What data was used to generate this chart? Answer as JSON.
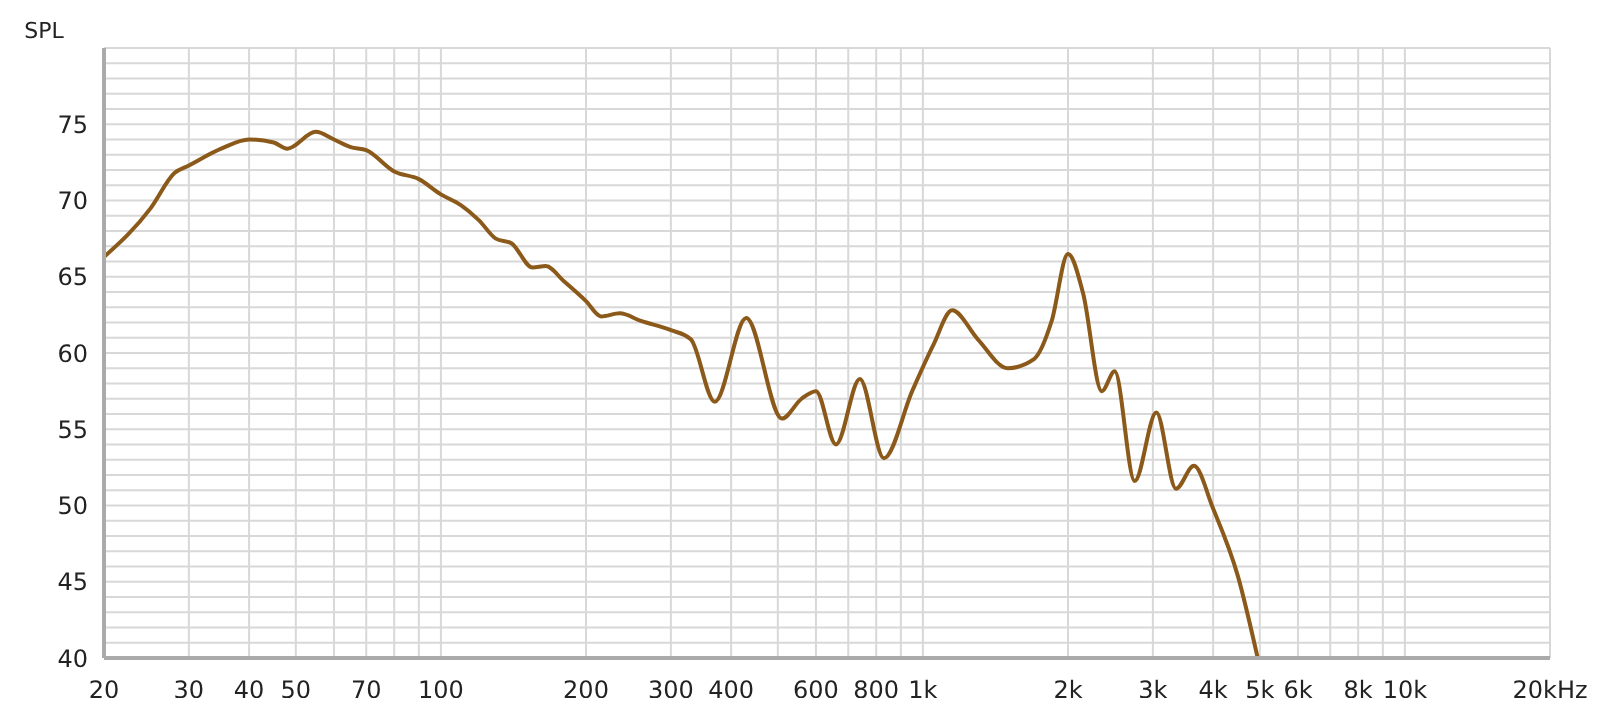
{
  "chart_data": {
    "type": "line",
    "ylabel": "SPL",
    "xlabel": "Hz",
    "xlim": [
      20,
      20000
    ],
    "ylim": [
      40,
      80
    ],
    "log": "x",
    "grid": true,
    "marker": "none",
    "line_style": "solid",
    "xticks": [
      20,
      30,
      40,
      50,
      {
        "value": 60,
        "label": null
      },
      70,
      {
        "value": 80,
        "label": null
      },
      {
        "value": 90,
        "label": null
      },
      100,
      200,
      300,
      400,
      {
        "value": 500,
        "label": null
      },
      600,
      {
        "value": 700,
        "label": null
      },
      800,
      {
        "value": 900,
        "label": null
      },
      {
        "value": 1000,
        "label": "1k"
      },
      {
        "value": 2000,
        "label": "2k"
      },
      {
        "value": 3000,
        "label": "3k"
      },
      {
        "value": 4000,
        "label": "4k"
      },
      {
        "value": 5000,
        "label": "5k"
      },
      {
        "value": 6000,
        "label": "6k"
      },
      {
        "value": 7000,
        "label": null
      },
      {
        "value": 8000,
        "label": "8k"
      },
      {
        "value": 9000,
        "label": null
      },
      {
        "value": 10000,
        "label": "10k"
      },
      {
        "value": 20000,
        "label": "20k"
      }
    ],
    "yticks": [
      40,
      {
        "value": 41,
        "label": null
      },
      {
        "value": 42,
        "label": null
      },
      {
        "value": 43,
        "label": null
      },
      {
        "value": 44,
        "label": null
      },
      45,
      {
        "value": 46,
        "label": null
      },
      {
        "value": 47,
        "label": null
      },
      {
        "value": 48,
        "label": null
      },
      {
        "value": 49,
        "label": null
      },
      50,
      {
        "value": 51,
        "label": null
      },
      {
        "value": 52,
        "label": null
      },
      {
        "value": 53,
        "label": null
      },
      {
        "value": 54,
        "label": null
      },
      55,
      {
        "value": 56,
        "label": null
      },
      {
        "value": 57,
        "label": null
      },
      {
        "value": 58,
        "label": null
      },
      {
        "value": 59,
        "label": null
      },
      60,
      {
        "value": 61,
        "label": null
      },
      {
        "value": 62,
        "label": null
      },
      {
        "value": 63,
        "label": null
      },
      {
        "value": 64,
        "label": null
      },
      65,
      {
        "value": 66,
        "label": null
      },
      {
        "value": 67,
        "label": null
      },
      {
        "value": 68,
        "label": null
      },
      {
        "value": 69,
        "label": null
      },
      70,
      {
        "value": 71,
        "label": null
      },
      {
        "value": 72,
        "label": null
      },
      {
        "value": 73,
        "label": null
      },
      {
        "value": 74,
        "label": null
      },
      75,
      {
        "value": 76,
        "label": null
      },
      {
        "value": 77,
        "label": null
      },
      {
        "value": 78,
        "label": null
      },
      {
        "value": 79,
        "label": null
      },
      {
        "value": 80,
        "label": null
      }
    ],
    "x": [
      20,
      25,
      28,
      30,
      35,
      40,
      45,
      48,
      55,
      60,
      65,
      70,
      80,
      90,
      100,
      110,
      120,
      130,
      140,
      155,
      165,
      180,
      200,
      215,
      235,
      260,
      300,
      330,
      370,
      430,
      510,
      560,
      600,
      660,
      740,
      830,
      950,
      1050,
      1150,
      1300,
      1500,
      1700,
      1850,
      2000,
      2150,
      2350,
      2500,
      2750,
      3050,
      3350,
      3650,
      4000,
      4500,
      4950
    ],
    "series": [
      {
        "color": "#8b5a1a",
        "values": [
          66.3,
          69.5,
          71.8,
          72.3,
          73.4,
          74.0,
          73.8,
          73.4,
          74.5,
          74.0,
          73.5,
          73.3,
          71.9,
          71.4,
          70.4,
          69.7,
          68.7,
          67.5,
          67.2,
          65.6,
          65.7,
          64.7,
          63.4,
          62.4,
          62.6,
          62.1,
          61.5,
          60.9,
          56.8,
          62.3,
          55.7,
          57.0,
          57.5,
          54.0,
          58.3,
          53.1,
          57.5,
          60.5,
          62.8,
          60.9,
          59.0,
          59.6,
          62.1,
          66.5,
          63.9,
          57.5,
          58.8,
          51.6,
          56.1,
          51.1,
          52.6,
          49.8,
          45.4,
          40.0
        ]
      }
    ]
  }
}
